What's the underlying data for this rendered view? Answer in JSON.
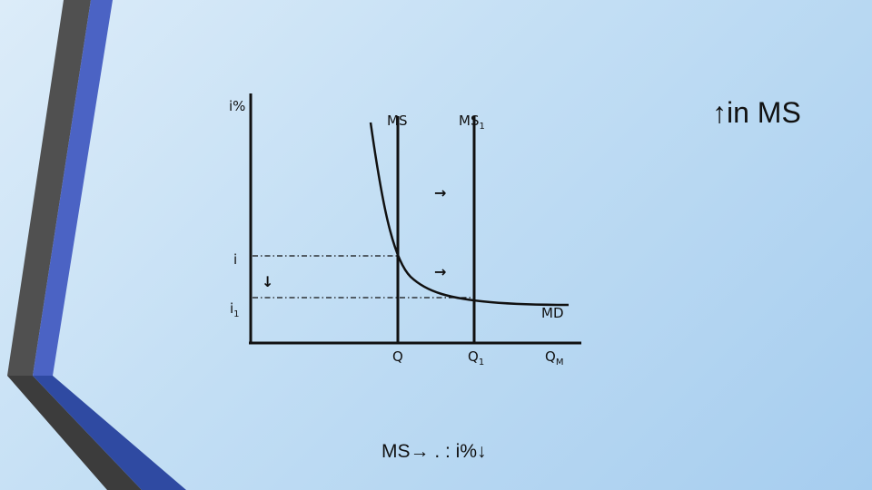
{
  "slide": {
    "title": "↑in MS",
    "caption_a": "MS",
    "caption_arrow": "→",
    "caption_b": ". : i%↓"
  },
  "diagram": {
    "y_axis_label": "i%",
    "ms_label": "MS",
    "ms1_label": "MS",
    "ms1_sub": "1",
    "md_label": "MD",
    "i_label": "i",
    "i1_label": "i",
    "i1_sub": "1",
    "q_label": "Q",
    "q1_label": "Q",
    "q1_sub": "1",
    "qm_label": "Q",
    "qm_sub": "M",
    "arrow_right": "→",
    "arrow_down": "↓"
  },
  "colors": {
    "ribbon_dark": "#4a4a4a",
    "ribbon_blue": "#4b63c4",
    "ribbon_navy": "#2f4aa2",
    "line": "#111111"
  }
}
